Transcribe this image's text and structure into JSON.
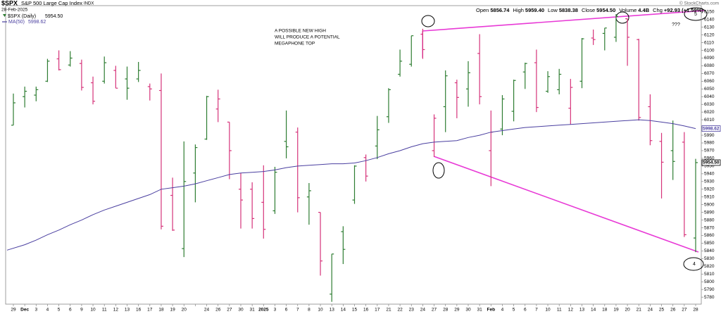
{
  "chart_data": {
    "type": "ohlc",
    "title": "$SPX",
    "subtitle": "S&P 500 Large Cap Index",
    "exchange": "INDX",
    "date": "28-Feb-2025",
    "credit": "© StockCharts.com",
    "quote": [
      {
        "label": "Open",
        "value": "5856.74"
      },
      {
        "label": "High",
        "value": "5959.40"
      },
      {
        "label": "Low",
        "value": "5838.38"
      },
      {
        "label": "Close",
        "value": "5954.50"
      },
      {
        "label": "Volume",
        "value": "4.4B"
      },
      {
        "label": "Chg",
        "value": "+92.93 (+1.59%)"
      }
    ],
    "categories": [
      "29",
      "Dec",
      "3",
      "4",
      "5",
      "6",
      "9",
      "10",
      "11",
      "12",
      "13",
      "16",
      "17",
      "18",
      "19",
      "20",
      null,
      "24",
      "26",
      "27",
      "30",
      "31",
      "2025",
      "3",
      "6",
      "7",
      "8",
      "10",
      "13",
      "14",
      "15",
      "16",
      "17",
      "21",
      "22",
      "23",
      "24",
      "27",
      "28",
      "29",
      "30",
      "31",
      "Feb",
      "4",
      "5",
      "6",
      "7",
      "10",
      "11",
      "12",
      "13",
      "14",
      "18",
      "19",
      "20",
      "21",
      "24",
      "25",
      "26",
      "27",
      "28"
    ],
    "series": [
      {
        "name": "$SPX (Daily)",
        "value_label": "5954.50",
        "up_color": "#2e7d32",
        "down_color": "#d6337a",
        "open": [
          6003,
          6040,
          6042,
          6060,
          6089,
          6081,
          6083,
          6058,
          6060,
          6074,
          6063,
          6063,
          6053,
          6048,
          5912,
          5843,
          5941,
          5985,
          6024,
          6007,
          5920,
          5920,
          5903,
          5892,
          5982,
          5994,
          5910,
          5890,
          5784,
          5865,
          5906,
          5961,
          5976,
          6014,
          6069,
          6082,
          6121,
          5970,
          6027,
          6058,
          6050,
          6096,
          5970,
          5998,
          6021,
          6072,
          6084,
          6047,
          6049,
          6025,
          6060,
          6116,
          6122,
          6117,
          6141,
          6114,
          6027,
          5982,
          5970,
          5981,
          5856.74
        ],
        "high": [
          6044,
          6053,
          6053,
          6089,
          6100,
          6099,
          6088,
          6066,
          6092,
          6080,
          6079,
          6085,
          6057,
          6070,
          5935,
          5982,
          5978,
          6041,
          6049,
          6007,
          5941,
          5929,
          5951,
          5949,
          6022,
          6000,
          5928,
          5890,
          5836,
          5872,
          5951,
          5965,
          6015,
          6051,
          6101,
          6119,
          6128,
          6017,
          6074,
          6062,
          6086,
          6121,
          6022,
          6042,
          6062,
          6084,
          6101,
          6073,
          6076,
          6063,
          6116,
          6127,
          6129,
          6147,
          6141,
          6115,
          6043,
          5993,
          6009,
          5994,
          5959.4
        ],
        "low": [
          6003,
          6026,
          6034,
          6059,
          6074,
          6079,
          6048,
          6030,
          6057,
          6051,
          6036,
          6059,
          6035,
          5868,
          5866,
          5832,
          5903,
          5984,
          6007,
          5933,
          5869,
          5869,
          5856,
          5888,
          5960,
          5890,
          5874,
          5808,
          5774,
          5823,
          5901,
          5930,
          5959,
          6006,
          6066,
          6079,
          6089,
          5962,
          5994,
          6012,
          6027,
          6030,
          5924,
          5990,
          6008,
          6050,
          6020,
          6045,
          6043,
          6004,
          6051,
          6107,
          6100,
          6111,
          6080,
          6009,
          5977,
          5908,
          5932,
          5858,
          5838.38
        ],
        "close": [
          6032,
          6047,
          6049,
          6086,
          6075,
          6090,
          6052,
          6034,
          6084,
          6051,
          6051,
          6074,
          6050,
          5872,
          5867,
          5930,
          5974,
          6040,
          6037,
          5970,
          5906,
          5882,
          5868,
          5942,
          5975,
          5909,
          5918,
          5827,
          5836,
          5842,
          5950,
          5937,
          5997,
          6049,
          6086,
          6119,
          6101,
          6012,
          6067,
          6039,
          6071,
          6040,
          5994,
          6037,
          6061,
          6083,
          6026,
          6066,
          6069,
          6052,
          6115,
          6114,
          6129,
          6144,
          6117,
          6013,
          5983,
          5955,
          5956,
          5861,
          5954.5
        ]
      },
      {
        "name": "MA(50)",
        "value_label": "5998.62",
        "color": "#4a3fa0",
        "axis": "ma",
        "values": [
          5841,
          5848,
          5854,
          5861,
          5867,
          5874,
          5880,
          5887,
          5893,
          5898,
          5903,
          5908,
          5913,
          5920,
          5922,
          5924,
          5927,
          5931,
          5935,
          5939,
          5941,
          5942,
          5943,
          5945,
          5948,
          5950,
          5951,
          5952,
          5953,
          5953,
          5954,
          5957,
          5961,
          5966,
          5970,
          5975,
          5979,
          5981,
          5982,
          5983,
          5987,
          5990,
          5994,
          5996,
          5998,
          6000,
          6001,
          6002,
          6003,
          6004,
          6005,
          6006,
          6007,
          6008,
          6009,
          6010,
          6009,
          6007,
          6005,
          6002,
          5998.62
        ]
      }
    ],
    "ylim": [
      5771,
      6158
    ],
    "yticks": [
      5780,
      5790,
      5800,
      5810,
      5820,
      5830,
      5840,
      5850,
      5860,
      5870,
      5880,
      5890,
      5900,
      5910,
      5920,
      5930,
      5940,
      5950,
      5960,
      5970,
      5980,
      5990,
      6000,
      6010,
      6020,
      6030,
      6040,
      6050,
      6060,
      6070,
      6080,
      6090,
      6100,
      6110,
      6120,
      6130,
      6140,
      6150
    ],
    "annotations": {
      "note": [
        "A POSSIBLE NEW HIGH",
        "WILL PRODUCE A POTENTIAL",
        "MEGAPHONE TOP"
      ],
      "wave5": "5",
      "wave4": "4",
      "question": "???"
    }
  }
}
